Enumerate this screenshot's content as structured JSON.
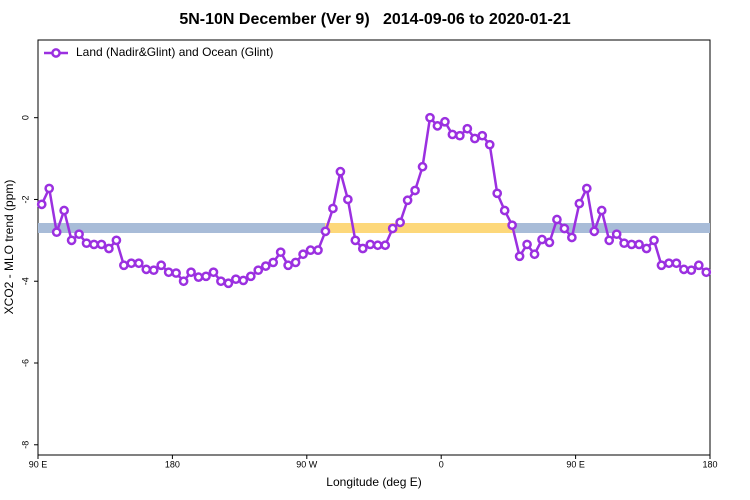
{
  "chart_data": {
    "type": "line",
    "title": "5N-10N December (Ver 9)   2014-09-06 to 2020-01-21",
    "xlabel": "Longitude (deg E)",
    "ylabel": "XCO2 - MLO trend (ppm)",
    "xlim": [
      90,
      540
    ],
    "xticks": [
      {
        "value": 90,
        "label": "90 E"
      },
      180,
      {
        "value": 270,
        "label": "90 W"
      },
      {
        "value": 360,
        "label": "0"
      },
      {
        "value": 450,
        "label": "90 E"
      },
      {
        "value": 540,
        "label": "180"
      }
    ],
    "ylim": [
      -8.25,
      1.9
    ],
    "yticks": [
      0,
      -2,
      -4,
      -6,
      -8
    ],
    "legend": "top-left",
    "x": [
      92.5,
      97.5,
      102.5,
      107.5,
      112.5,
      117.5,
      122.5,
      127.5,
      132.5,
      137.5,
      142.5,
      147.5,
      152.5,
      157.5,
      162.5,
      167.5,
      172.5,
      177.5,
      182.5,
      187.5,
      192.5,
      197.5,
      202.5,
      207.5,
      212.5,
      217.5,
      222.5,
      227.5,
      232.5,
      237.5,
      242.5,
      247.5,
      252.5,
      257.5,
      262.5,
      267.5,
      272.5,
      277.5,
      282.5,
      287.5,
      292.5,
      297.5,
      302.5,
      307.5,
      312.5,
      317.5,
      322.5,
      327.5,
      332.5,
      337.5,
      342.5,
      347.5,
      352.5,
      357.5,
      362.5,
      367.5,
      372.5,
      377.5,
      382.5,
      387.5,
      392.5,
      397.5,
      402.5,
      407.5,
      412.5,
      417.5,
      422.5,
      427.5,
      432.5,
      437.5,
      442.5,
      447.5,
      452.5,
      457.5,
      462.5,
      467.5,
      472.5,
      477.5,
      482.5,
      487.5,
      492.5,
      497.5,
      502.5,
      507.5,
      512.5,
      517.5,
      522.5,
      527.5,
      532.5,
      537.5
    ],
    "series": [
      {
        "name": "Land (Nadir&Glint) and Ocean (Glint)",
        "color": "#9b30e0",
        "values": [
          -2.12,
          -1.73,
          -2.8,
          -2.27,
          -3.0,
          -2.85,
          -3.07,
          -3.1,
          -3.1,
          -3.2,
          -3.0,
          -3.61,
          -3.56,
          -3.56,
          -3.71,
          -3.73,
          -3.61,
          -3.78,
          -3.8,
          -4.0,
          -3.78,
          -3.9,
          -3.88,
          -3.78,
          -4.0,
          -4.05,
          -3.95,
          -3.98,
          -3.88,
          -3.73,
          -3.63,
          -3.54,
          -3.29,
          -3.61,
          -3.54,
          -3.34,
          -3.24,
          -3.24,
          -2.78,
          -2.22,
          -1.32,
          -2.0,
          -3.0,
          -3.2,
          -3.1,
          -3.12,
          -3.12,
          -2.71,
          -2.56,
          -2.02,
          -1.78,
          -1.2,
          0,
          -0.2,
          -0.1,
          -0.41,
          -0.44,
          -0.27,
          -0.51,
          -0.44,
          -0.66,
          -1.85,
          -2.27,
          -2.63,
          -3.39,
          -3.1,
          -3.34,
          -2.98,
          -3.05,
          -2.49,
          -2.71,
          -2.93,
          -2.1,
          -1.73,
          -2.78,
          -2.27,
          -3.0,
          -2.85,
          -3.07,
          -3.1,
          -3.1,
          -3.2,
          -3.0,
          -3.61,
          -3.56,
          -3.56,
          -3.71,
          -3.73,
          -3.61,
          -3.78
        ]
      }
    ]
  }
}
